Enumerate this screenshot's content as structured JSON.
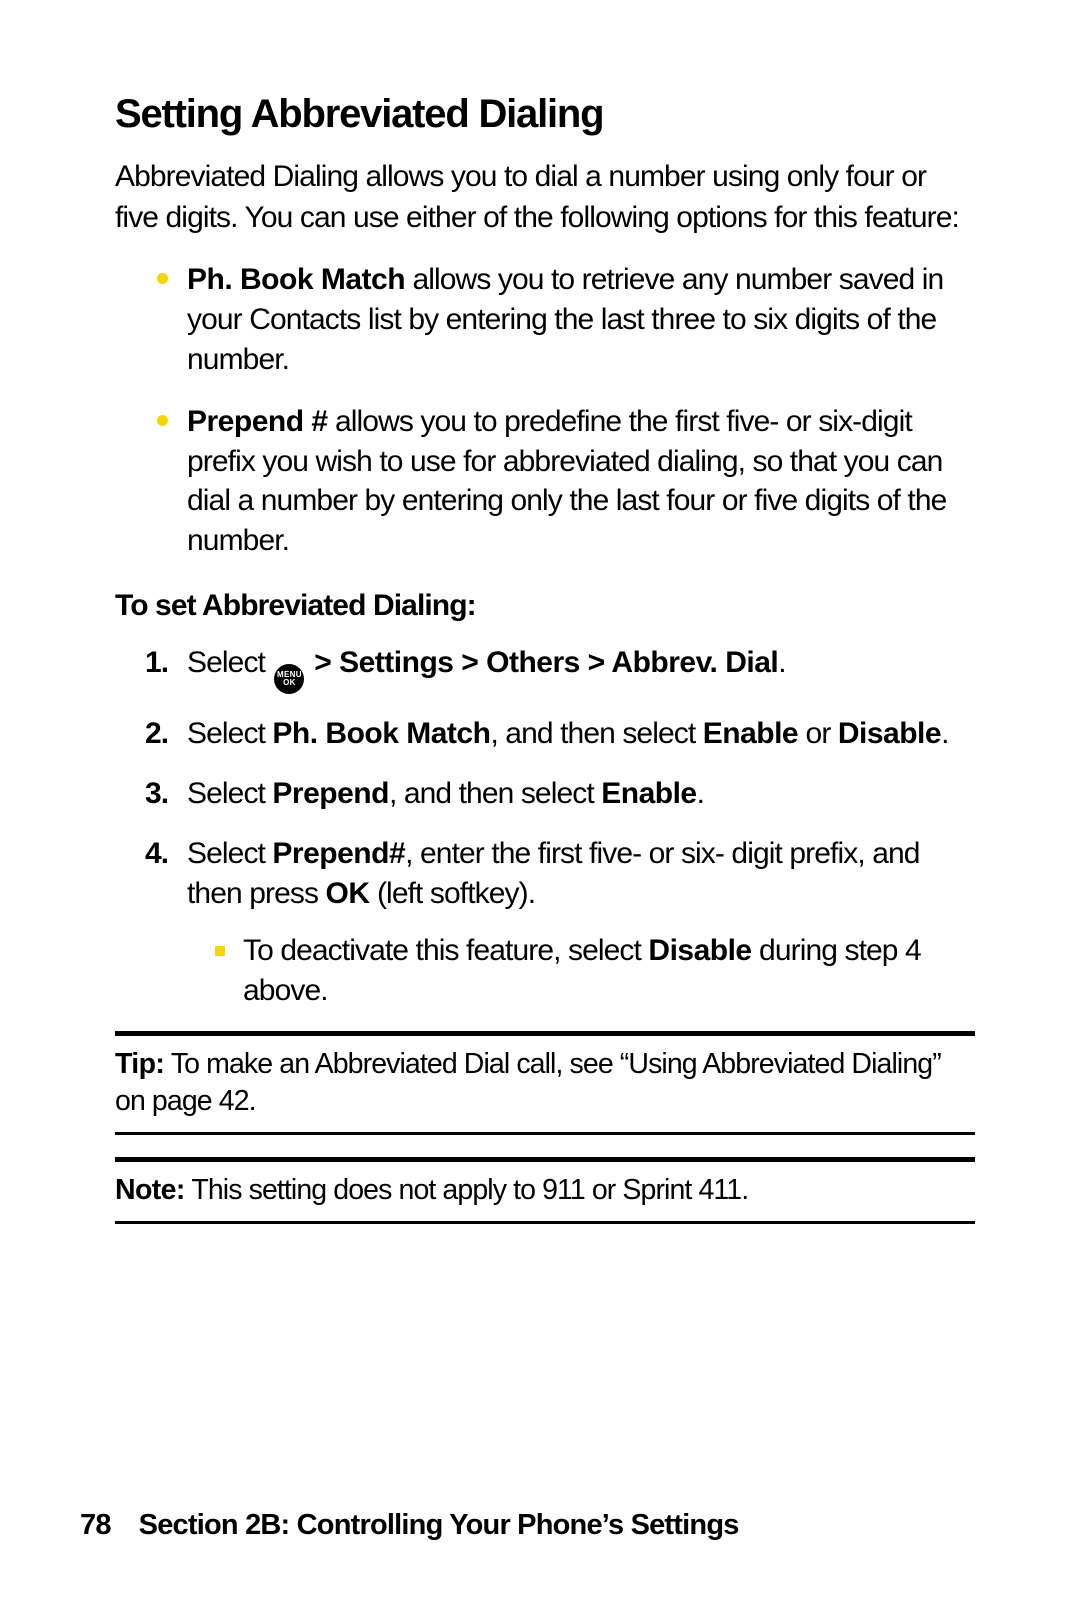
{
  "title": "Setting Abbreviated Dialing",
  "intro": "Abbreviated Dialing allows you to dial a number using only four or five digits. You can use either of the following options for this feature:",
  "features": [
    {
      "label": "Ph. Book Match",
      "text": " allows you to retrieve any number saved in your Contacts list by entering the last three to six digits of the number."
    },
    {
      "label": "Prepend #",
      "text": " allows you to predefine the first five- or six-digit prefix you wish to use for abbreviated dialing, so that you can dial a number by entering only the last four or five digits of the number."
    }
  ],
  "subhead": "To set Abbreviated Dialing:",
  "menu_button": {
    "line1": "MENU",
    "line2": "OK"
  },
  "steps": {
    "s1": {
      "pre": "Select ",
      "path": " > Settings > Others > Abbrev. Dial",
      "post": "."
    },
    "s2": {
      "pre": "Select ",
      "b1": "Ph. Book Match",
      "mid": ", and then select ",
      "b2": "Enable",
      "or": " or ",
      "b3": "Disable",
      "post": "."
    },
    "s3": {
      "pre": "Select ",
      "b1": "Prepend",
      "mid": ", and then select ",
      "b2": "Enable",
      "post": "."
    },
    "s4": {
      "pre": "Select ",
      "b1": "Prepend#",
      "mid": ", enter the first five- or six- digit prefix, and then press ",
      "b2": "OK",
      "post": " (left softkey)."
    },
    "sub": {
      "pre": "To deactivate this feature, select ",
      "b1": "Disable",
      "post": " during step 4 above."
    }
  },
  "tip": {
    "label": "Tip:",
    "text": " To make an Abbreviated Dial call, see “Using Abbreviated Dialing” on page 42."
  },
  "note": {
    "label": "Note:",
    "text": " This setting does not apply to 911 or Sprint 411."
  },
  "footer": {
    "page": "78",
    "section": "Section 2B: Controlling Your Phone’s Settings"
  },
  "colors": {
    "bullet": "#f5d700",
    "text": "#000000",
    "background": "#ffffff"
  }
}
